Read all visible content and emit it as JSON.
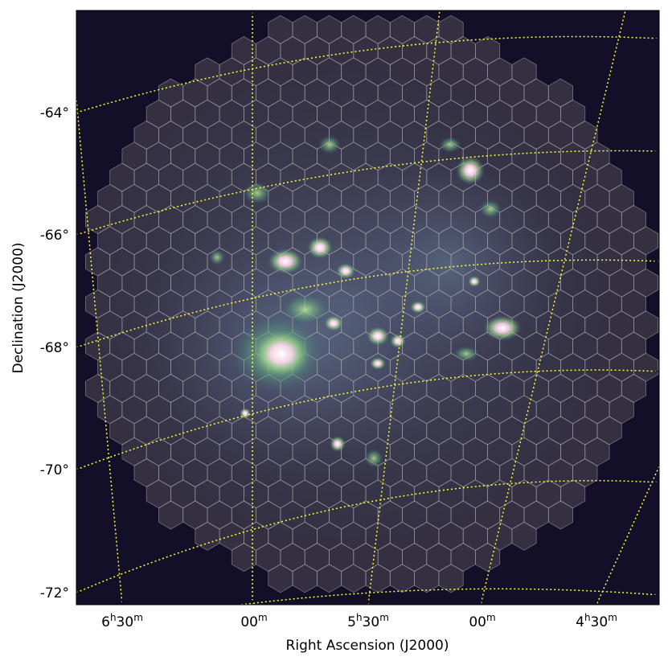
{
  "figure": {
    "x_axis": {
      "title": "Right Ascension (J2000)",
      "ticks": [
        {
          "main": "6",
          "h": "h",
          "rest": "30",
          "m": "m"
        },
        {
          "main": "",
          "h": "",
          "rest": "00",
          "m": "m"
        },
        {
          "main": "5",
          "h": "h",
          "rest": "30",
          "m": "m"
        },
        {
          "main": "",
          "h": "",
          "rest": "00",
          "m": "m"
        },
        {
          "main": "4",
          "h": "h",
          "rest": "30",
          "m": "m"
        }
      ]
    },
    "y_axis": {
      "title": "Declination (J2000)",
      "ticks": [
        "-64°",
        "-66°",
        "-68°",
        "-70°",
        "-72°"
      ]
    },
    "colors": {
      "background_sky": "#140f28",
      "grid_lines": "#ffff33",
      "hex_tiles": "#8a8a8a",
      "hex_edges": "#b4b4b4",
      "emission_bright": "#ffe6f2",
      "emission_mid": "#7ac77a",
      "emission_diffuse": "#5a6a9a"
    },
    "overlay": {
      "grid_style": "dotted",
      "tiles": "hexagonal mosaic"
    }
  }
}
